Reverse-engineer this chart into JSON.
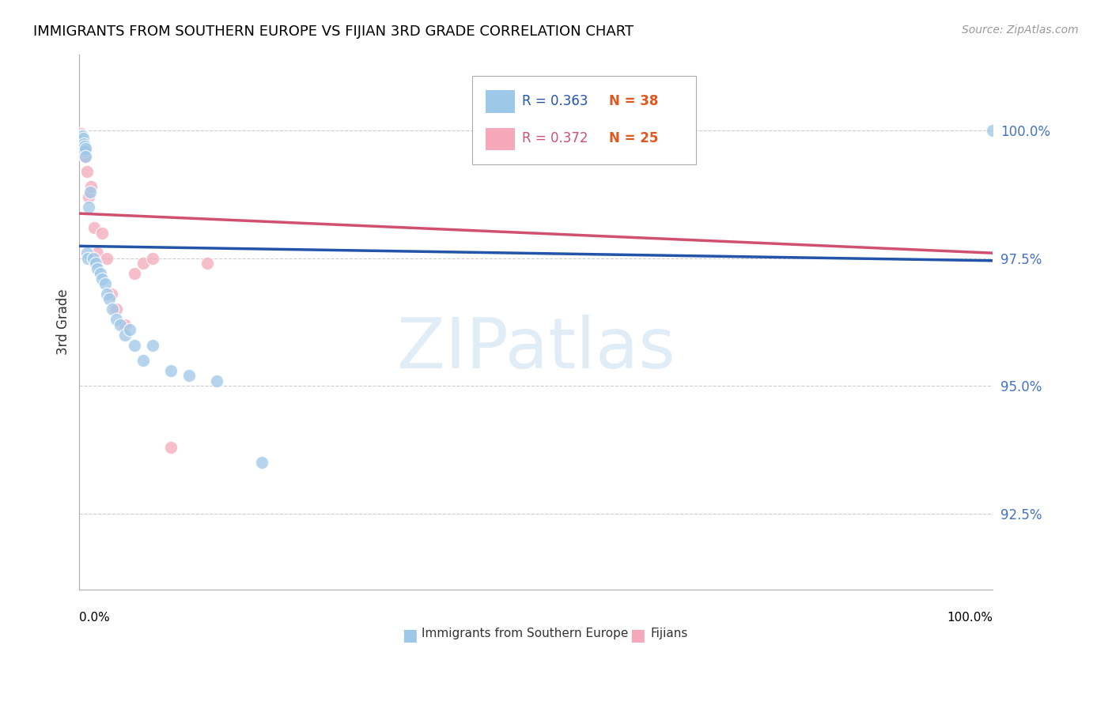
{
  "title": "IMMIGRANTS FROM SOUTHERN EUROPE VS FIJIAN 3RD GRADE CORRELATION CHART",
  "source": "Source: ZipAtlas.com",
  "ylabel": "3rd Grade",
  "ytick_values": [
    92.5,
    95.0,
    97.5,
    100.0
  ],
  "xlim": [
    0.0,
    100.0
  ],
  "ylim": [
    91.0,
    101.5
  ],
  "blue_color": "#9ec8e8",
  "pink_color": "#f4a8ba",
  "blue_line_color": "#2255aa",
  "pink_line_color": "#d05070",
  "r_blue": "0.363",
  "n_blue": "38",
  "r_pink": "0.372",
  "n_pink": "25",
  "n_color": "#e05820",
  "watermark_text": "ZIPatlas",
  "legend_label_blue": "Immigrants from Southern Europe",
  "legend_label_pink": "Fijians",
  "blue_scatter_x": [
    0.1,
    0.15,
    0.2,
    0.25,
    0.3,
    0.35,
    0.4,
    0.45,
    0.5,
    0.55,
    0.6,
    0.65,
    0.7,
    0.8,
    0.9,
    1.0,
    1.2,
    1.5,
    1.8,
    2.0,
    2.3,
    2.5,
    2.8,
    3.0,
    3.3,
    3.6,
    4.0,
    4.5,
    5.0,
    5.5,
    6.0,
    7.0,
    8.0,
    10.0,
    12.0,
    15.0,
    20.0,
    100.0
  ],
  "blue_scatter_y": [
    99.9,
    99.85,
    99.8,
    99.75,
    99.9,
    99.8,
    99.85,
    99.7,
    99.75,
    99.7,
    99.6,
    99.65,
    99.5,
    97.6,
    97.5,
    98.5,
    98.8,
    97.5,
    97.4,
    97.3,
    97.2,
    97.1,
    97.0,
    96.8,
    96.7,
    96.5,
    96.3,
    96.2,
    96.0,
    96.1,
    95.8,
    95.5,
    95.8,
    95.3,
    95.2,
    95.1,
    93.5,
    100.0
  ],
  "pink_scatter_x": [
    0.1,
    0.15,
    0.2,
    0.25,
    0.3,
    0.35,
    0.4,
    0.5,
    0.6,
    0.8,
    1.0,
    1.3,
    1.6,
    2.0,
    2.5,
    3.0,
    3.5,
    4.0,
    5.0,
    6.0,
    7.0,
    8.0,
    10.0,
    14.0,
    50.0
  ],
  "pink_scatter_y": [
    99.95,
    99.9,
    99.85,
    99.8,
    99.7,
    99.65,
    99.75,
    99.6,
    99.5,
    99.2,
    98.7,
    98.9,
    98.1,
    97.6,
    98.0,
    97.5,
    96.8,
    96.5,
    96.2,
    97.2,
    97.4,
    97.5,
    93.8,
    97.4,
    100.0
  ]
}
